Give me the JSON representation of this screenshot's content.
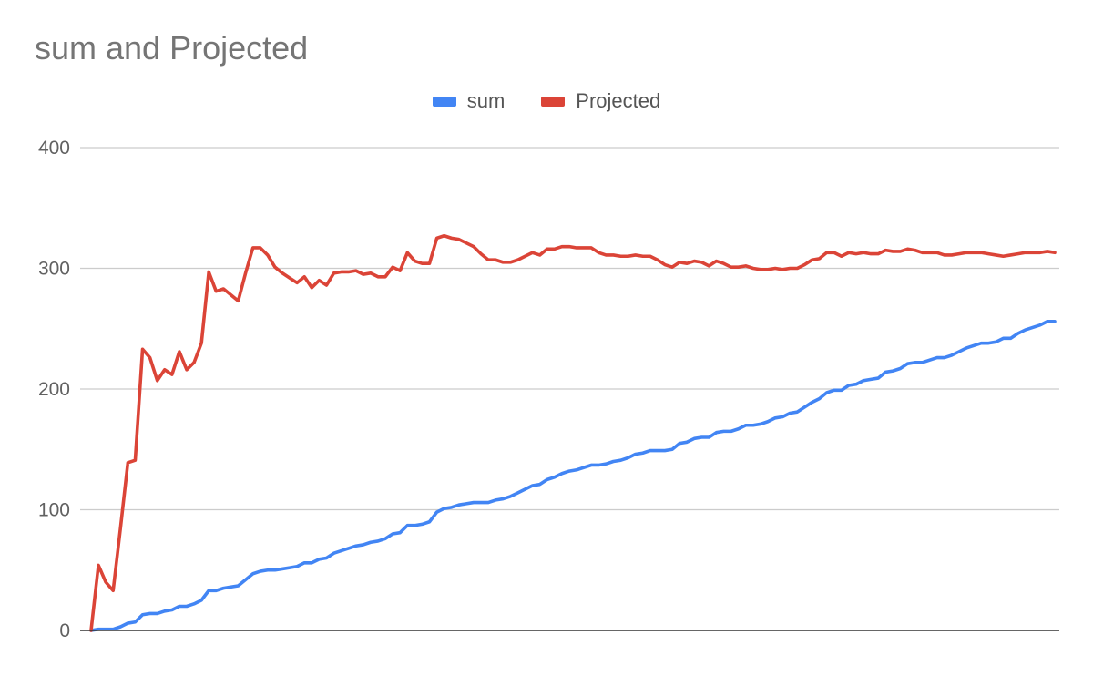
{
  "chart_data": {
    "type": "line",
    "title": "sum and Projected",
    "xlabel": "",
    "ylabel": "",
    "ylim": [
      0,
      400
    ],
    "yticks": [
      0,
      100,
      200,
      300,
      400
    ],
    "grid": true,
    "legend_position": "top",
    "series": [
      {
        "name": "sum",
        "color": "#4285F4",
        "values": [
          0,
          1,
          1,
          1,
          3,
          6,
          7,
          13,
          14,
          14,
          16,
          17,
          20,
          20,
          22,
          25,
          33,
          33,
          35,
          36,
          37,
          42,
          47,
          49,
          50,
          50,
          51,
          52,
          53,
          56,
          56,
          59,
          60,
          64,
          66,
          68,
          70,
          71,
          73,
          74,
          76,
          80,
          81,
          87,
          87,
          88,
          90,
          98,
          101,
          102,
          104,
          105,
          106,
          106,
          106,
          108,
          109,
          111,
          114,
          117,
          120,
          121,
          125,
          127,
          130,
          132,
          133,
          135,
          137,
          137,
          138,
          140,
          141,
          143,
          146,
          147,
          149,
          149,
          149,
          150,
          155,
          156,
          159,
          160,
          160,
          164,
          165,
          165,
          167,
          170,
          170,
          171,
          173,
          176,
          177,
          180,
          181,
          185,
          189,
          192,
          197,
          199,
          199,
          203,
          204,
          207,
          208,
          209,
          214,
          215,
          217,
          221,
          222,
          222,
          224,
          226,
          226,
          228,
          231,
          234,
          236,
          238,
          238,
          239,
          242,
          242,
          246,
          249,
          251,
          253,
          256,
          256
        ],
        "note": ""
      },
      {
        "name": "Projected",
        "color": "#DB4437",
        "values": [
          0,
          54,
          40,
          33,
          85,
          139,
          141,
          233,
          226,
          207,
          216,
          212,
          231,
          216,
          222,
          238,
          297,
          281,
          283,
          278,
          273,
          296,
          317,
          317,
          311,
          301,
          296,
          292,
          288,
          293,
          284,
          290,
          286,
          296,
          297,
          297,
          298,
          295,
          296,
          293,
          293,
          301,
          298,
          313,
          306,
          304,
          304,
          325,
          327,
          325,
          324,
          321,
          318,
          312,
          307,
          307,
          305,
          305,
          307,
          310,
          313,
          311,
          316,
          316,
          318,
          318,
          317,
          317,
          317,
          313,
          311,
          311,
          310,
          310,
          311,
          310,
          310,
          307,
          303,
          301,
          305,
          304,
          306,
          305,
          302,
          306,
          304,
          301,
          301,
          302,
          300,
          299,
          299,
          300,
          299,
          300,
          300,
          303,
          307,
          308,
          313,
          313,
          310,
          313,
          312,
          313,
          312,
          312,
          315,
          314,
          314,
          316,
          315,
          313,
          313,
          313,
          311,
          311,
          312,
          313,
          313,
          313,
          312,
          311,
          310,
          311,
          312,
          313,
          313,
          313,
          314,
          313
        ]
      }
    ]
  }
}
